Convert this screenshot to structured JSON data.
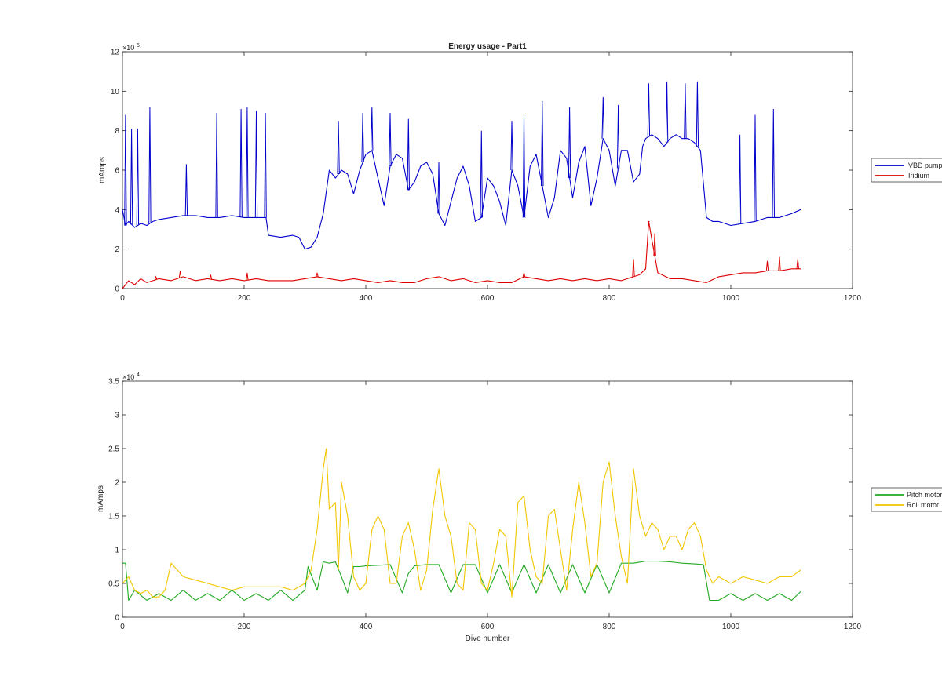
{
  "figure": {
    "background": "#ffffff"
  },
  "chart_data": [
    {
      "type": "line",
      "title": "Energy usage - Part1",
      "xlabel": "",
      "ylabel": "mAmps",
      "xlim": [
        0,
        1200
      ],
      "ylim": [
        0,
        1200000
      ],
      "x_ticks": [
        0,
        200,
        400,
        600,
        800,
        1000,
        1200
      ],
      "y_ticks": [
        0,
        200000,
        400000,
        600000,
        800000,
        1000000,
        1200000
      ],
      "y_tick_labels": [
        "0",
        "2",
        "4",
        "6",
        "8",
        "10",
        "12"
      ],
      "y_exponent": {
        "base": "×10",
        "power": "5"
      },
      "grid": false,
      "legend_position": "outside-right",
      "series": [
        {
          "name": "VBD pump",
          "color": "#0000cc",
          "x": [
            0,
            5,
            10,
            20,
            30,
            40,
            50,
            60,
            80,
            100,
            120,
            140,
            160,
            180,
            200,
            220,
            236,
            240,
            260,
            280,
            290,
            300,
            310,
            320,
            330,
            340,
            350,
            360,
            370,
            380,
            390,
            400,
            410,
            420,
            430,
            440,
            450,
            460,
            470,
            480,
            490,
            500,
            510,
            520,
            530,
            540,
            550,
            560,
            570,
            580,
            590,
            600,
            610,
            620,
            630,
            640,
            650,
            660,
            670,
            680,
            690,
            700,
            710,
            720,
            730,
            740,
            750,
            760,
            770,
            780,
            790,
            800,
            810,
            820,
            830,
            840,
            850,
            855,
            860,
            870,
            880,
            890,
            900,
            910,
            920,
            930,
            940,
            950,
            960,
            970,
            980,
            1000,
            1020,
            1040,
            1060,
            1080,
            1100,
            1115
          ],
          "y": [
            400000,
            320000,
            340000,
            310000,
            330000,
            320000,
            340000,
            350000,
            360000,
            370000,
            370000,
            360000,
            360000,
            370000,
            360000,
            360000,
            360000,
            270000,
            260000,
            270000,
            260000,
            200000,
            210000,
            260000,
            380000,
            600000,
            560000,
            600000,
            580000,
            480000,
            600000,
            680000,
            700000,
            560000,
            420000,
            620000,
            680000,
            660000,
            500000,
            540000,
            620000,
            640000,
            580000,
            380000,
            320000,
            440000,
            560000,
            620000,
            520000,
            340000,
            360000,
            560000,
            520000,
            440000,
            320000,
            600000,
            520000,
            360000,
            620000,
            680000,
            520000,
            360000,
            460000,
            700000,
            660000,
            460000,
            640000,
            720000,
            420000,
            560000,
            760000,
            700000,
            520000,
            700000,
            700000,
            540000,
            580000,
            720000,
            760000,
            780000,
            760000,
            720000,
            760000,
            780000,
            760000,
            760000,
            740000,
            700000,
            360000,
            340000,
            340000,
            320000,
            330000,
            340000,
            360000,
            360000,
            380000,
            400000
          ],
          "spikes": [
            [
              5,
              880000
            ],
            [
              15,
              810000
            ],
            [
              25,
              810000
            ],
            [
              45,
              920000
            ],
            [
              105,
              630000
            ],
            [
              155,
              890000
            ],
            [
              195,
              910000
            ],
            [
              205,
              920000
            ],
            [
              220,
              900000
            ],
            [
              235,
              890000
            ],
            [
              355,
              850000
            ],
            [
              395,
              890000
            ],
            [
              410,
              920000
            ],
            [
              440,
              890000
            ],
            [
              470,
              860000
            ],
            [
              520,
              640000
            ],
            [
              590,
              800000
            ],
            [
              640,
              850000
            ],
            [
              660,
              880000
            ],
            [
              690,
              950000
            ],
            [
              735,
              920000
            ],
            [
              790,
              970000
            ],
            [
              815,
              930000
            ],
            [
              865,
              1040000
            ],
            [
              895,
              1050000
            ],
            [
              925,
              1040000
            ],
            [
              945,
              1050000
            ],
            [
              1015,
              780000
            ],
            [
              1040,
              880000
            ],
            [
              1070,
              910000
            ]
          ]
        },
        {
          "name": "Iridium",
          "color": "#dd0000",
          "x": [
            0,
            10,
            20,
            30,
            40,
            60,
            80,
            100,
            120,
            140,
            160,
            180,
            200,
            220,
            240,
            260,
            280,
            300,
            320,
            340,
            360,
            380,
            400,
            420,
            440,
            460,
            480,
            500,
            520,
            540,
            560,
            580,
            600,
            620,
            640,
            660,
            680,
            700,
            720,
            740,
            760,
            780,
            800,
            820,
            840,
            850,
            860,
            865,
            870,
            880,
            900,
            920,
            940,
            960,
            980,
            1000,
            1020,
            1040,
            1060,
            1080,
            1100,
            1115
          ],
          "y": [
            0,
            40000,
            20000,
            50000,
            30000,
            50000,
            40000,
            60000,
            40000,
            50000,
            40000,
            50000,
            40000,
            50000,
            40000,
            40000,
            40000,
            50000,
            60000,
            50000,
            40000,
            50000,
            40000,
            30000,
            40000,
            30000,
            30000,
            50000,
            60000,
            40000,
            50000,
            30000,
            40000,
            30000,
            30000,
            60000,
            50000,
            40000,
            50000,
            40000,
            50000,
            40000,
            50000,
            40000,
            60000,
            70000,
            100000,
            340000,
            250000,
            80000,
            50000,
            50000,
            40000,
            30000,
            60000,
            70000,
            80000,
            80000,
            90000,
            90000,
            100000,
            100000
          ],
          "spikes": [
            [
              55,
              60000
            ],
            [
              95,
              90000
            ],
            [
              145,
              70000
            ],
            [
              205,
              80000
            ],
            [
              320,
              80000
            ],
            [
              660,
              80000
            ],
            [
              840,
              150000
            ],
            [
              865,
              340000
            ],
            [
              875,
              280000
            ],
            [
              1060,
              140000
            ],
            [
              1080,
              160000
            ],
            [
              1110,
              150000
            ]
          ]
        }
      ]
    },
    {
      "type": "line",
      "title": "",
      "xlabel": "Dive number",
      "ylabel": "mAmps",
      "xlim": [
        0,
        1200
      ],
      "ylim": [
        0,
        35000
      ],
      "x_ticks": [
        0,
        200,
        400,
        600,
        800,
        1000,
        1200
      ],
      "y_ticks": [
        0,
        5000,
        10000,
        15000,
        20000,
        25000,
        30000,
        35000
      ],
      "y_tick_labels": [
        "0",
        "0.5",
        "1",
        "1.5",
        "2",
        "2.5",
        "3",
        "3.5"
      ],
      "y_exponent": {
        "base": "×10",
        "power": "4"
      },
      "grid": false,
      "legend_position": "outside-right",
      "series": [
        {
          "name": "Pitch motor",
          "color": "#22aa22",
          "x": [
            0,
            5,
            10,
            20,
            40,
            60,
            80,
            100,
            120,
            140,
            160,
            180,
            200,
            220,
            240,
            260,
            280,
            300,
            305,
            320,
            330,
            340,
            350,
            360,
            370,
            380,
            390,
            400,
            420,
            440,
            460,
            470,
            480,
            500,
            520,
            540,
            560,
            580,
            600,
            620,
            640,
            660,
            680,
            700,
            720,
            740,
            760,
            780,
            800,
            820,
            840,
            860,
            880,
            900,
            920,
            940,
            955,
            965,
            980,
            1000,
            1020,
            1040,
            1060,
            1080,
            1100,
            1115
          ],
          "y": [
            8000,
            8000,
            2500,
            4000,
            2500,
            3500,
            2500,
            4000,
            2500,
            3500,
            2500,
            4000,
            2500,
            3500,
            2500,
            4000,
            2500,
            4000,
            7500,
            4000,
            8200,
            8000,
            8200,
            6000,
            3600,
            7500,
            7500,
            7600,
            7700,
            7800,
            3600,
            6500,
            7600,
            7800,
            7800,
            3600,
            7800,
            7800,
            3600,
            7800,
            3600,
            7800,
            3600,
            7800,
            3600,
            7800,
            3600,
            7800,
            3600,
            8000,
            8000,
            8300,
            8300,
            8200,
            8000,
            7900,
            7800,
            2500,
            2500,
            3500,
            2500,
            3500,
            2500,
            3500,
            2500,
            3800
          ]
        },
        {
          "name": "Roll motor",
          "color": "#f2c600",
          "x": [
            0,
            10,
            20,
            30,
            40,
            50,
            60,
            70,
            80,
            90,
            100,
            120,
            140,
            160,
            180,
            200,
            220,
            240,
            260,
            280,
            300,
            310,
            320,
            330,
            335,
            340,
            350,
            355,
            360,
            370,
            380,
            390,
            400,
            410,
            420,
            430,
            440,
            450,
            460,
            470,
            480,
            490,
            500,
            510,
            520,
            530,
            540,
            550,
            560,
            570,
            580,
            590,
            600,
            610,
            620,
            630,
            640,
            650,
            660,
            670,
            680,
            690,
            700,
            710,
            720,
            730,
            740,
            750,
            760,
            770,
            780,
            790,
            800,
            810,
            820,
            830,
            840,
            850,
            860,
            870,
            880,
            890,
            900,
            910,
            920,
            930,
            940,
            950,
            960,
            970,
            980,
            1000,
            1020,
            1040,
            1060,
            1080,
            1100,
            1115
          ],
          "y": [
            5000,
            6000,
            4000,
            3500,
            4000,
            3000,
            3000,
            4000,
            8000,
            7000,
            6000,
            5500,
            5000,
            4500,
            4000,
            4500,
            4500,
            4500,
            4500,
            4000,
            5000,
            7000,
            13000,
            22000,
            25000,
            16000,
            17000,
            7000,
            20000,
            15000,
            6000,
            4000,
            5000,
            13000,
            15000,
            13000,
            5000,
            5000,
            12000,
            14000,
            10000,
            4000,
            7000,
            16000,
            22000,
            15000,
            12000,
            5000,
            4000,
            14000,
            13000,
            5000,
            4000,
            8000,
            13000,
            12000,
            3000,
            17000,
            18000,
            10000,
            6000,
            5000,
            15000,
            16000,
            10000,
            4000,
            13000,
            20000,
            14000,
            6000,
            8000,
            20000,
            23000,
            15000,
            9000,
            5000,
            22000,
            15000,
            12000,
            14000,
            13000,
            10000,
            12000,
            12000,
            10000,
            13000,
            14000,
            12000,
            7000,
            5000,
            6000,
            5000,
            6000,
            5500,
            5000,
            6000,
            6000,
            7000
          ]
        }
      ]
    }
  ]
}
